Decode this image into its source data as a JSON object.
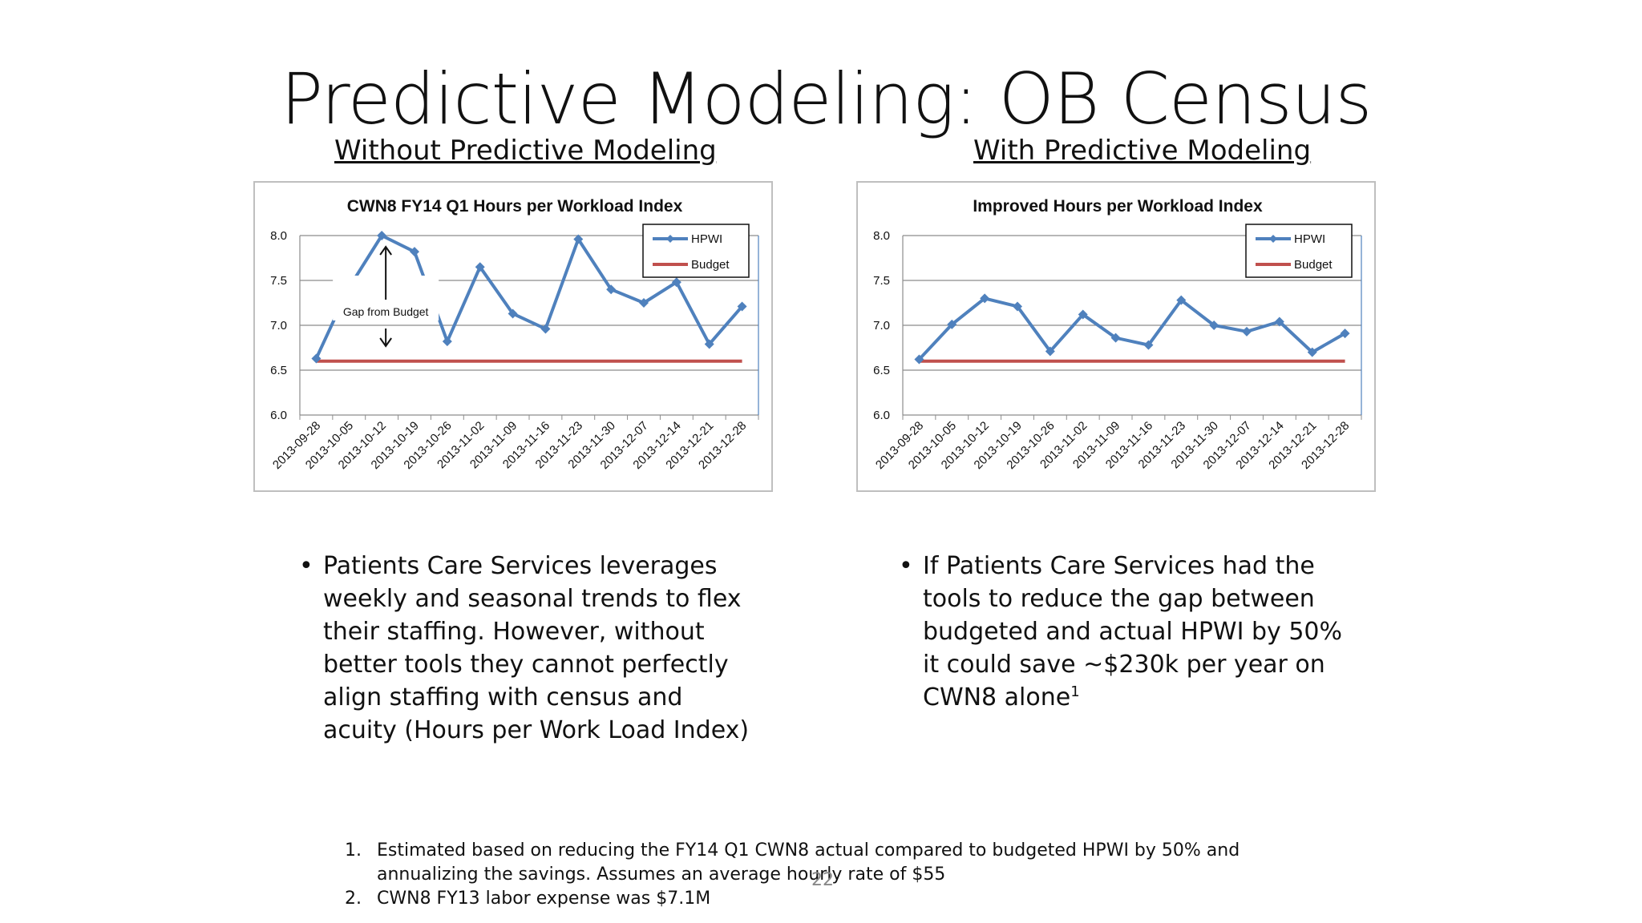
{
  "slide": {
    "title": "Predictive Modeling: OB Census",
    "left_heading": "Without Predictive Modeling",
    "right_heading": "With Predictive Modeling",
    "left_bullet": "Patients Care Services leverages weekly and seasonal trends to flex their staffing. However, without better tools they cannot perfectly align staffing with census and acuity (Hours per Work Load Index)",
    "right_bullet_main": "If Patients Care Services had the tools to reduce the gap between budgeted and actual HPWI by 50% it could save ~$230k per year on CWN8 alone",
    "right_bullet_sup": "1",
    "footnote_1_num": "1.",
    "footnote_1": "Estimated based on reducing the FY14 Q1 CWN8 actual compared to budgeted HPWI by 50% and annualizing the savings. Assumes an average hourly rate of $55",
    "footnote_2_num": "2.",
    "footnote_2": "CWN8 FY13 labor expense was $7.1M",
    "page_number": "22",
    "bullet_glyph": "•"
  },
  "colors": {
    "hpwi": "#4f81bd",
    "budget": "#c0504d",
    "gridline": "#8c8c8c",
    "axis": "#8c8c8c"
  },
  "chart_data": [
    {
      "type": "line",
      "title": "CWN8 FY14 Q1 Hours per Workload Index",
      "categories": [
        "2013-09-28",
        "2013-10-05",
        "2013-10-12",
        "2013-10-19",
        "2013-10-26",
        "2013-11-02",
        "2013-11-09",
        "2013-11-16",
        "2013-11-23",
        "2013-11-30",
        "2013-12-07",
        "2013-12-14",
        "2013-12-21",
        "2013-12-28"
      ],
      "series": [
        {
          "name": "HPWI",
          "values": [
            6.63,
            7.42,
            8.0,
            7.82,
            6.82,
            7.65,
            7.13,
            6.96,
            7.96,
            7.4,
            7.25,
            7.48,
            6.79,
            7.21
          ]
        },
        {
          "name": "Budget",
          "values": [
            6.6,
            6.6,
            6.6,
            6.6,
            6.6,
            6.6,
            6.6,
            6.6,
            6.6,
            6.6,
            6.6,
            6.6,
            6.6,
            6.6
          ]
        }
      ],
      "ylim": [
        6.0,
        8.0
      ],
      "yticks": [
        "6.0",
        "6.5",
        "7.0",
        "7.5",
        "8.0"
      ],
      "grid": true,
      "legend": "top-right",
      "annotation": "Gap from Budget"
    },
    {
      "type": "line",
      "title": "Improved Hours per Workload Index",
      "categories": [
        "2013-09-28",
        "2013-10-05",
        "2013-10-12",
        "2013-10-19",
        "2013-10-26",
        "2013-11-02",
        "2013-11-09",
        "2013-11-16",
        "2013-11-23",
        "2013-11-30",
        "2013-12-07",
        "2013-12-14",
        "2013-12-21",
        "2013-12-28"
      ],
      "series": [
        {
          "name": "HPWI",
          "values": [
            6.62,
            7.01,
            7.3,
            7.21,
            6.71,
            7.12,
            6.86,
            6.78,
            7.28,
            7.0,
            6.93,
            7.04,
            6.7,
            6.91
          ]
        },
        {
          "name": "Budget",
          "values": [
            6.6,
            6.6,
            6.6,
            6.6,
            6.6,
            6.6,
            6.6,
            6.6,
            6.6,
            6.6,
            6.6,
            6.6,
            6.6,
            6.6
          ]
        }
      ],
      "ylim": [
        6.0,
        8.0
      ],
      "yticks": [
        "6.0",
        "6.5",
        "7.0",
        "7.5",
        "8.0"
      ],
      "grid": true,
      "legend": "top-right"
    }
  ]
}
